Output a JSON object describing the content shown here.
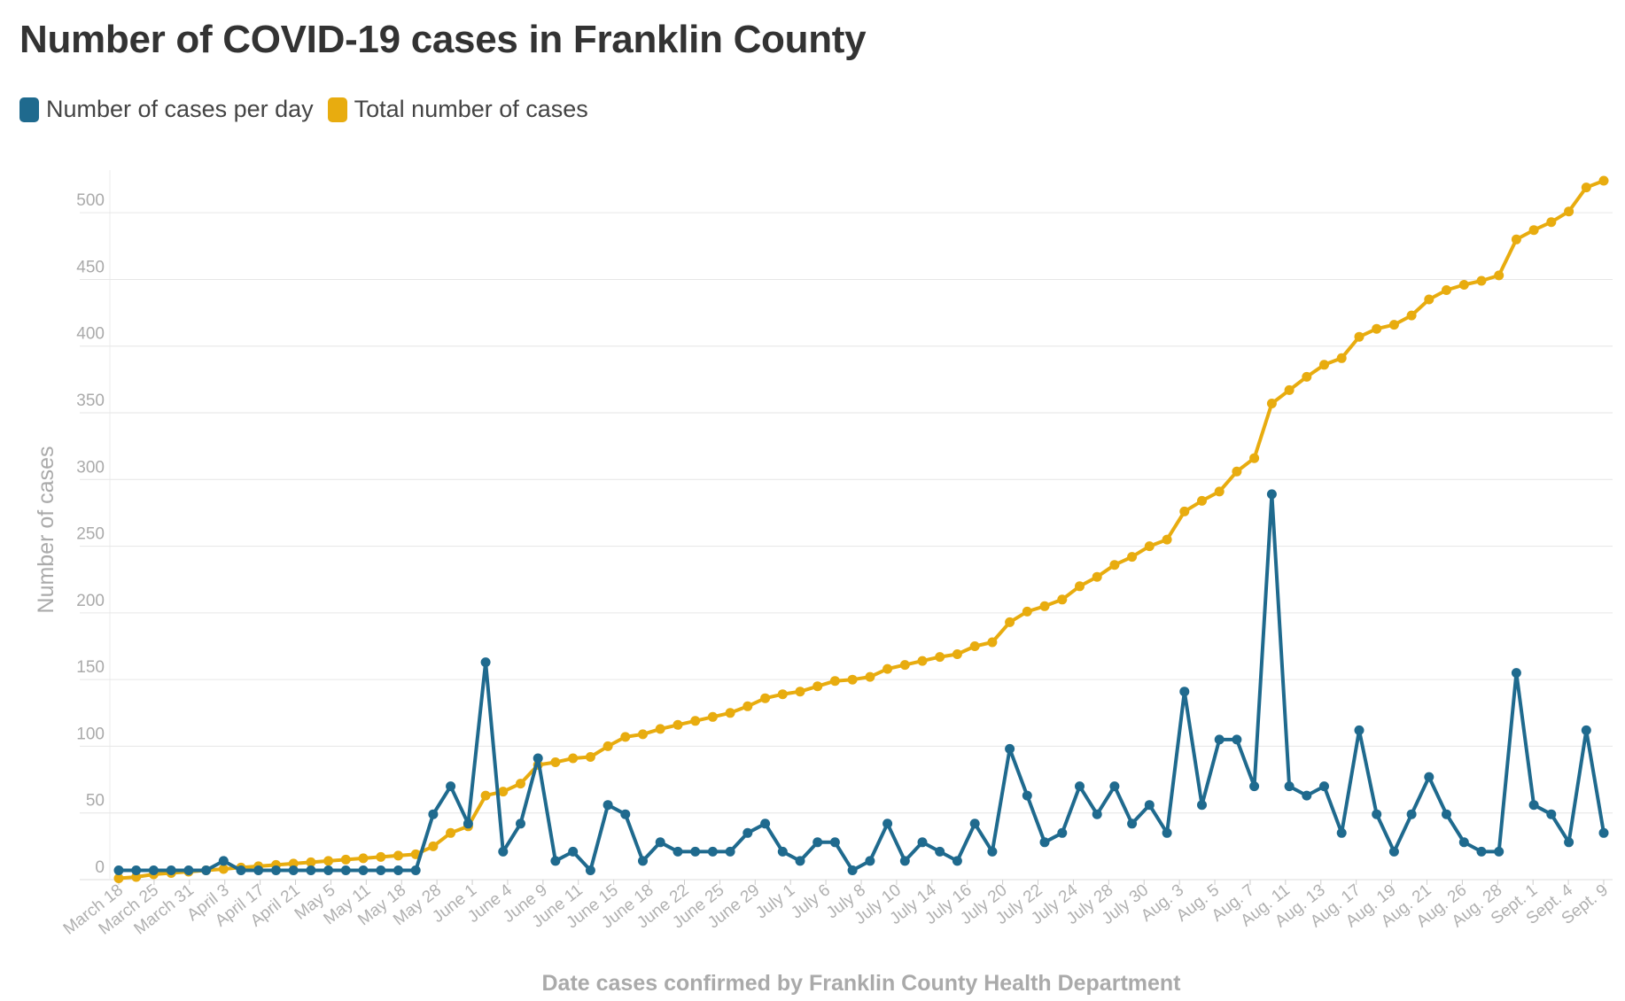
{
  "chart_data": {
    "type": "line",
    "title": "Number of COVID-19 cases in Franklin County",
    "xlabel": "Date cases confirmed by Franklin County Health Department",
    "ylabel": "Number of cases",
    "ylim": [
      0,
      530
    ],
    "y_ticks": [
      0,
      50,
      100,
      150,
      200,
      250,
      300,
      350,
      400,
      450,
      500
    ],
    "grid": true,
    "legend_position": "top-left",
    "x_tick_labels": [
      "March 18",
      "March 25",
      "March 31",
      "April 3",
      "April 17",
      "April 21",
      "May 5",
      "May 11",
      "May 18",
      "May 28",
      "June 1",
      "June 4",
      "June 9",
      "June 11",
      "June 15",
      "June 18",
      "June 22",
      "June 25",
      "June 29",
      "July 1",
      "July 6",
      "July 8",
      "July 10",
      "July 14",
      "July 16",
      "July 20",
      "July 22",
      "July 24",
      "July 28",
      "July 30",
      "Aug. 3",
      "Aug. 5",
      "Aug. 7",
      "Aug. 11",
      "Aug. 13",
      "Aug. 17",
      "Aug. 19",
      "Aug. 21",
      "Aug. 26",
      "Aug. 28",
      "Sept. 1",
      "Sept. 4",
      "Sept. 9"
    ],
    "series": [
      {
        "name": "Number of cases per day",
        "color": "#1f6a8e",
        "values": [
          7,
          7,
          7,
          7,
          7,
          7,
          14,
          7,
          7,
          7,
          7,
          7,
          7,
          7,
          7,
          7,
          7,
          7,
          49,
          70,
          42,
          163,
          21,
          42,
          91,
          14,
          21,
          7,
          56,
          49,
          14,
          28,
          21,
          21,
          21,
          21,
          35,
          42,
          21,
          14,
          28,
          28,
          7,
          14,
          42,
          14,
          28,
          21,
          14,
          42,
          21,
          98,
          63,
          28,
          35,
          70,
          49,
          70,
          42,
          56,
          35,
          141,
          56,
          105,
          105,
          70,
          289,
          70,
          63,
          70,
          35,
          112,
          49,
          21,
          49,
          77,
          49,
          28,
          21,
          21,
          155,
          56,
          49,
          28,
          112,
          35
        ]
      },
      {
        "name": "Total number of cases",
        "color": "#e8ac0f",
        "values": [
          1,
          2,
          4,
          5,
          6,
          7,
          8,
          9,
          10,
          11,
          12,
          13,
          14,
          15,
          16,
          17,
          18,
          19,
          25,
          35,
          40,
          63,
          66,
          72,
          86,
          88,
          91,
          92,
          100,
          107,
          109,
          113,
          116,
          119,
          122,
          125,
          130,
          136,
          139,
          141,
          145,
          149,
          150,
          152,
          158,
          161,
          164,
          167,
          169,
          175,
          178,
          193,
          201,
          205,
          210,
          220,
          227,
          236,
          242,
          250,
          255,
          276,
          284,
          291,
          306,
          316,
          357,
          367,
          377,
          386,
          391,
          407,
          413,
          416,
          423,
          435,
          442,
          446,
          449,
          453,
          480,
          487,
          493,
          501,
          519,
          524
        ]
      }
    ]
  }
}
